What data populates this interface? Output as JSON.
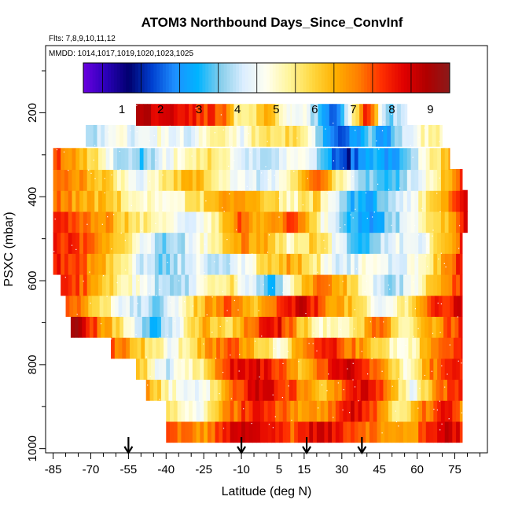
{
  "chart_data": {
    "type": "heatmap",
    "title": "ATOM3 Northbound Days_Since_ConvInf",
    "subtitle": "Flts: 7,8,9,10,11,12",
    "annotation": "MMDD: 1014,1017,1019,1020,1023,1025",
    "xlabel": "Latitude (deg N)",
    "ylabel": "PSXC (mbar)",
    "xlim": [
      -88,
      88
    ],
    "ylim": [
      1010,
      40
    ],
    "x_ticks": [
      -85,
      -70,
      -55,
      -40,
      -25,
      -10,
      5,
      15,
      30,
      45,
      60,
      75
    ],
    "y_ticks": [
      200,
      400,
      600,
      800,
      1000
    ],
    "colorbar": {
      "ticks": [
        1,
        2,
        3,
        4,
        5,
        6,
        7,
        8,
        9
      ],
      "range": [
        0,
        9.5
      ],
      "colors": [
        "#6a00e0",
        "#2a00b8",
        "#00006e",
        "#0040d0",
        "#1e90ff",
        "#00b4ff",
        "#87ceeb",
        "#dceeff",
        "#fffff0",
        "#fff59a",
        "#ffd840",
        "#ffb000",
        "#ff8000",
        "#ff3000",
        "#e00000",
        "#b00000",
        "#8b1a1a"
      ]
    },
    "markers": {
      "type": "down-arrow",
      "x": [
        -55,
        -10,
        16,
        38
      ]
    },
    "levels": [
      {
        "p": 960,
        "lat_min": -40,
        "lat_max": 78,
        "anchors": [
          [
            -40,
            7.5
          ],
          [
            -25,
            6.8
          ],
          [
            -15,
            8
          ],
          [
            -10,
            8.5
          ],
          [
            0,
            8.2
          ],
          [
            10,
            7.5
          ],
          [
            20,
            8.5
          ],
          [
            30,
            8
          ],
          [
            40,
            7.4
          ],
          [
            50,
            6.5
          ],
          [
            60,
            7
          ],
          [
            70,
            8.7
          ],
          [
            78,
            8
          ]
        ]
      },
      {
        "p": 910,
        "lat_min": -40,
        "lat_max": 78,
        "anchors": [
          [
            -40,
            6
          ],
          [
            -28,
            4.5
          ],
          [
            -15,
            7
          ],
          [
            -5,
            8
          ],
          [
            5,
            7.6
          ],
          [
            15,
            6.5
          ],
          [
            25,
            7.2
          ],
          [
            35,
            8.5
          ],
          [
            45,
            7
          ],
          [
            55,
            5
          ],
          [
            62,
            7
          ],
          [
            72,
            8.2
          ],
          [
            78,
            7
          ]
        ]
      },
      {
        "p": 860,
        "lat_min": -48,
        "lat_max": 78,
        "anchors": [
          [
            -48,
            7
          ],
          [
            -38,
            5
          ],
          [
            -25,
            4.5
          ],
          [
            -15,
            7
          ],
          [
            -5,
            8.4
          ],
          [
            5,
            8
          ],
          [
            15,
            7
          ],
          [
            22,
            5.8
          ],
          [
            30,
            7.5
          ],
          [
            40,
            8.7
          ],
          [
            50,
            6.5
          ],
          [
            58,
            4.5
          ],
          [
            68,
            7
          ],
          [
            78,
            8
          ]
        ]
      },
      {
        "p": 810,
        "lat_min": -52,
        "lat_max": 78,
        "anchors": [
          [
            -52,
            6.5
          ],
          [
            -40,
            4
          ],
          [
            -25,
            5.5
          ],
          [
            -15,
            8
          ],
          [
            -5,
            8.5
          ],
          [
            5,
            7.5
          ],
          [
            15,
            6
          ],
          [
            25,
            7.8
          ],
          [
            35,
            8.6
          ],
          [
            45,
            7.2
          ],
          [
            55,
            5
          ],
          [
            65,
            7
          ],
          [
            78,
            8.2
          ]
        ]
      },
      {
        "p": 760,
        "lat_min": -62,
        "lat_max": 78,
        "anchors": [
          [
            -62,
            7.5
          ],
          [
            -50,
            6.2
          ],
          [
            -38,
            4.5
          ],
          [
            -25,
            6.5
          ],
          [
            -15,
            7.5
          ],
          [
            -5,
            6.5
          ],
          [
            5,
            5
          ],
          [
            15,
            6.8
          ],
          [
            25,
            8
          ],
          [
            35,
            7
          ],
          [
            45,
            6
          ],
          [
            55,
            4.5
          ],
          [
            65,
            6.8
          ],
          [
            78,
            8
          ]
        ]
      },
      {
        "p": 710,
        "lat_min": -78,
        "lat_max": 78,
        "anchors": [
          [
            -78,
            9.3
          ],
          [
            -68,
            7.5
          ],
          [
            -55,
            5
          ],
          [
            -45,
            3.2
          ],
          [
            -35,
            4.5
          ],
          [
            -25,
            6.5
          ],
          [
            -15,
            5.5
          ],
          [
            -5,
            7.5
          ],
          [
            5,
            8.2
          ],
          [
            15,
            6
          ],
          [
            25,
            4.8
          ],
          [
            35,
            5.5
          ],
          [
            45,
            7.5
          ],
          [
            55,
            5
          ],
          [
            65,
            6.5
          ],
          [
            78,
            8
          ]
        ]
      },
      {
        "p": 660,
        "lat_min": -80,
        "lat_max": 78,
        "anchors": [
          [
            -80,
            8
          ],
          [
            -70,
            6.5
          ],
          [
            -58,
            4.5
          ],
          [
            -45,
            3.5
          ],
          [
            -35,
            4.8
          ],
          [
            -25,
            6.5
          ],
          [
            -15,
            7.3
          ],
          [
            -5,
            6
          ],
          [
            5,
            7.5
          ],
          [
            15,
            8.5
          ],
          [
            25,
            7
          ],
          [
            35,
            6
          ],
          [
            45,
            4.2
          ],
          [
            55,
            5.5
          ],
          [
            65,
            7.5
          ],
          [
            78,
            8.3
          ]
        ]
      },
      {
        "p": 610,
        "lat_min": -82,
        "lat_max": 78,
        "anchors": [
          [
            -82,
            8.3
          ],
          [
            -70,
            7
          ],
          [
            -58,
            5.5
          ],
          [
            -45,
            4
          ],
          [
            -35,
            3.5
          ],
          [
            -25,
            4.8
          ],
          [
            -15,
            5.8
          ],
          [
            -5,
            4
          ],
          [
            3,
            3
          ],
          [
            10,
            5.5
          ],
          [
            20,
            7
          ],
          [
            30,
            6.5
          ],
          [
            40,
            4.8
          ],
          [
            50,
            3.5
          ],
          [
            60,
            5
          ],
          [
            70,
            7
          ],
          [
            78,
            8
          ]
        ]
      },
      {
        "p": 560,
        "lat_min": -85,
        "lat_max": 78,
        "anchors": [
          [
            -85,
            8
          ],
          [
            -72,
            7.2
          ],
          [
            -60,
            5.8
          ],
          [
            -50,
            4.2
          ],
          [
            -40,
            3.3
          ],
          [
            -30,
            4.5
          ],
          [
            -20,
            3.8
          ],
          [
            -10,
            4.5
          ],
          [
            0,
            5.8
          ],
          [
            10,
            6.8
          ],
          [
            20,
            5.5
          ],
          [
            30,
            4
          ],
          [
            40,
            4.8
          ],
          [
            50,
            4.2
          ],
          [
            60,
            4.8
          ],
          [
            70,
            6.5
          ],
          [
            78,
            8
          ]
        ]
      },
      {
        "p": 510,
        "lat_min": -85,
        "lat_max": 78,
        "anchors": [
          [
            -85,
            8
          ],
          [
            -72,
            7.5
          ],
          [
            -60,
            6.5
          ],
          [
            -50,
            4.8
          ],
          [
            -40,
            3.5
          ],
          [
            -30,
            4.2
          ],
          [
            -20,
            5.5
          ],
          [
            -10,
            7
          ],
          [
            0,
            6.5
          ],
          [
            10,
            5
          ],
          [
            20,
            6.2
          ],
          [
            30,
            4
          ],
          [
            40,
            3
          ],
          [
            50,
            4.5
          ],
          [
            60,
            4.2
          ],
          [
            70,
            6
          ],
          [
            78,
            7.8
          ]
        ]
      },
      {
        "p": 460,
        "lat_min": -85,
        "lat_max": 80,
        "anchors": [
          [
            -85,
            7.8
          ],
          [
            -72,
            7.3
          ],
          [
            -60,
            6.5
          ],
          [
            -50,
            5.5
          ],
          [
            -40,
            4.8
          ],
          [
            -30,
            4.3
          ],
          [
            -20,
            5.5
          ],
          [
            -10,
            7.5
          ],
          [
            0,
            6.2
          ],
          [
            10,
            7.5
          ],
          [
            20,
            5.5
          ],
          [
            30,
            3.2
          ],
          [
            40,
            2.5
          ],
          [
            50,
            3.5
          ],
          [
            60,
            5
          ],
          [
            70,
            6
          ],
          [
            80,
            8.3
          ]
        ]
      },
      {
        "p": 410,
        "lat_min": -85,
        "lat_max": 80,
        "anchors": [
          [
            -85,
            7.2
          ],
          [
            -72,
            6.5
          ],
          [
            -60,
            6
          ],
          [
            -50,
            5
          ],
          [
            -40,
            4.8
          ],
          [
            -30,
            5.5
          ],
          [
            -20,
            6.2
          ],
          [
            -10,
            7
          ],
          [
            0,
            6.3
          ],
          [
            10,
            5
          ],
          [
            20,
            6
          ],
          [
            30,
            3.5
          ],
          [
            40,
            2.5
          ],
          [
            50,
            4
          ],
          [
            60,
            4.8
          ],
          [
            70,
            6.5
          ],
          [
            80,
            8.5
          ]
        ]
      },
      {
        "p": 360,
        "lat_min": -85,
        "lat_max": 78,
        "anchors": [
          [
            -85,
            7.5
          ],
          [
            -72,
            6.8
          ],
          [
            -60,
            5.5
          ],
          [
            -50,
            4.5
          ],
          [
            -40,
            5.8
          ],
          [
            -30,
            6.5
          ],
          [
            -20,
            5.5
          ],
          [
            -10,
            4.5
          ],
          [
            0,
            4
          ],
          [
            10,
            5.5
          ],
          [
            20,
            7.5
          ],
          [
            30,
            5
          ],
          [
            40,
            3.5
          ],
          [
            50,
            3
          ],
          [
            60,
            4.5
          ],
          [
            70,
            6
          ],
          [
            78,
            8
          ]
        ]
      },
      {
        "p": 310,
        "lat_min": -85,
        "lat_max": 73,
        "anchors": [
          [
            -85,
            7.8
          ],
          [
            -72,
            6.2
          ],
          [
            -60,
            4.2
          ],
          [
            -50,
            3.2
          ],
          [
            -40,
            4.5
          ],
          [
            -30,
            5.5
          ],
          [
            -20,
            5.8
          ],
          [
            -10,
            4.5
          ],
          [
            0,
            3.8
          ],
          [
            10,
            4.8
          ],
          [
            20,
            4.2
          ],
          [
            25,
            2.5
          ],
          [
            32,
            1.5
          ],
          [
            40,
            3
          ],
          [
            50,
            2.5
          ],
          [
            58,
            4
          ],
          [
            65,
            5
          ],
          [
            73,
            6.8
          ]
        ]
      },
      {
        "p": 255,
        "lat_min": -72,
        "lat_max": 70,
        "anchors": [
          [
            -72,
            3.5
          ],
          [
            -62,
            4.8
          ],
          [
            -52,
            4.2
          ],
          [
            -42,
            4.8
          ],
          [
            -30,
            4.2
          ],
          [
            -20,
            5.3
          ],
          [
            -10,
            4.5
          ],
          [
            0,
            6
          ],
          [
            10,
            5.8
          ],
          [
            18,
            4.5
          ],
          [
            25,
            2.5
          ],
          [
            32,
            2
          ],
          [
            40,
            3.5
          ],
          [
            48,
            2.5
          ],
          [
            55,
            4
          ],
          [
            62,
            5
          ],
          [
            70,
            5.2
          ]
        ]
      },
      {
        "p": 205,
        "lat_min": -52,
        "lat_max": 10,
        "anchors": [
          [
            -52,
            8.8
          ],
          [
            -40,
            8.4
          ],
          [
            -30,
            8
          ],
          [
            -20,
            7.5
          ],
          [
            -15,
            6.8
          ],
          [
            -12,
            5
          ],
          [
            -5,
            5.5
          ],
          [
            0,
            6.5
          ],
          [
            5,
            5.5
          ],
          [
            10,
            4.8
          ]
        ]
      },
      {
        "p": 205,
        "lat_min": 10,
        "lat_max": 56,
        "anchors": [
          [
            10,
            4.5
          ],
          [
            15,
            5
          ],
          [
            20,
            3.5
          ],
          [
            25,
            2
          ],
          [
            30,
            2.8
          ],
          [
            35,
            5.5
          ],
          [
            40,
            8.5
          ],
          [
            45,
            5
          ],
          [
            50,
            3.5
          ],
          [
            56,
            4.5
          ]
        ]
      }
    ]
  }
}
